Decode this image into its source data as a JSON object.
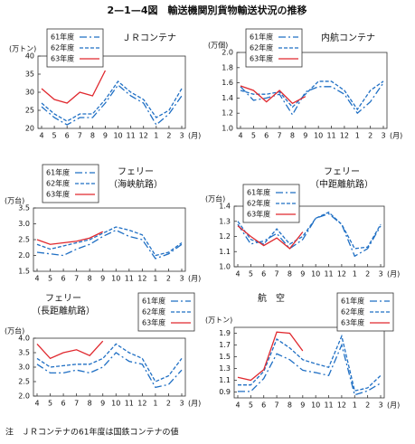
{
  "title": "2—1—4図　輸送機関別貨物輸送状況の推移",
  "note": "注　ＪＲコンテナの61年度は国鉄コンテナの値",
  "chart_data": [
    {
      "type": "line",
      "title": "ＪＲコンテナ",
      "ylabel": "(万トン)",
      "xlabel": "(月)",
      "categories": [
        "4",
        "5",
        "6",
        "7",
        "8",
        "9",
        "10",
        "11",
        "12",
        "1",
        "2",
        "3"
      ],
      "ylim": [
        20,
        40
      ],
      "yticks": [
        20,
        25,
        30,
        35,
        40
      ],
      "legend": "upper left",
      "series": [
        {
          "name": "61年度",
          "color": "#1f6fc4",
          "dash": "dashdot",
          "values": [
            26,
            23,
            21,
            23,
            23,
            27,
            32,
            29,
            27,
            21,
            24,
            29
          ]
        },
        {
          "name": "62年度",
          "color": "#1f6fc4",
          "dash": "dashed",
          "values": [
            27,
            24,
            22,
            24,
            24,
            28,
            33,
            30,
            28,
            23,
            25,
            31
          ]
        },
        {
          "name": "63年度",
          "color": "#e0282e",
          "dash": "solid",
          "values": [
            31,
            28,
            27,
            30,
            29,
            36,
            null,
            null,
            null,
            null,
            null,
            null
          ]
        }
      ]
    },
    {
      "type": "line",
      "title": "内航コンテナ",
      "ylabel": "(万個)",
      "xlabel": "(月)",
      "categories": [
        "4",
        "5",
        "6",
        "7",
        "8",
        "9",
        "10",
        "11",
        "12",
        "1",
        "2",
        "3"
      ],
      "ylim": [
        1,
        2
      ],
      "yticks": [
        {
          "value": 1,
          "label": "1.0"
        },
        1.2,
        1.4,
        1.6,
        1.8,
        {
          "value": 2,
          "label": "2.0"
        }
      ],
      "legend": "upper left",
      "series": [
        {
          "name": "61年度",
          "color": "#1f6fc4",
          "dash": "dashdot",
          "values": [
            1.55,
            1.37,
            1.4,
            1.45,
            1.18,
            1.48,
            1.55,
            1.55,
            1.45,
            1.2,
            1.35,
            1.6
          ]
        },
        {
          "name": "62年度",
          "color": "#1f6fc4",
          "dash": "dashed",
          "values": [
            1.5,
            1.45,
            1.45,
            1.48,
            1.28,
            1.45,
            1.62,
            1.62,
            1.5,
            1.25,
            1.5,
            1.62
          ]
        },
        {
          "name": "63年度",
          "color": "#e0282e",
          "dash": "solid",
          "values": [
            1.56,
            1.5,
            1.35,
            1.5,
            1.33,
            1.42,
            null,
            null,
            null,
            null,
            null,
            null
          ]
        }
      ]
    },
    {
      "type": "line",
      "title": "フェリー",
      "subtitle": "（海峡航路）",
      "ylabel": "(万台)",
      "xlabel": "(月)",
      "categories": [
        "4",
        "5",
        "6",
        "7",
        "8",
        "9",
        "10",
        "11",
        "12",
        "1",
        "2",
        "3"
      ],
      "ylim": [
        1.5,
        3.5
      ],
      "yticks": [
        1.5,
        {
          "value": 2,
          "label": "2.0"
        },
        2.5,
        {
          "value": 3,
          "label": "3.0"
        },
        3.5
      ],
      "legend": "upper left",
      "series": [
        {
          "name": "61年度",
          "color": "#1f6fc4",
          "dash": "dashdot",
          "values": [
            2.1,
            2.05,
            2.0,
            2.2,
            2.35,
            2.6,
            2.8,
            2.6,
            2.5,
            1.9,
            2.05,
            2.35
          ]
        },
        {
          "name": "62年度",
          "color": "#1f6fc4",
          "dash": "dashed",
          "values": [
            2.35,
            2.2,
            2.3,
            2.4,
            2.5,
            2.7,
            2.9,
            2.8,
            2.65,
            2.0,
            2.1,
            2.4
          ]
        },
        {
          "name": "63年度",
          "color": "#e0282e",
          "dash": "solid",
          "values": [
            2.5,
            2.35,
            2.4,
            2.45,
            2.55,
            2.75,
            null,
            null,
            null,
            null,
            null,
            null
          ]
        }
      ]
    },
    {
      "type": "line",
      "title": "フェリー",
      "subtitle": "（中距離航路）",
      "ylabel": "(万台)",
      "xlabel": "(月)",
      "categories": [
        "4",
        "5",
        "6",
        "7",
        "8",
        "9",
        "10",
        "11",
        "12",
        "1",
        "2",
        "3"
      ],
      "ylim": [
        1,
        1.4
      ],
      "yticks": [
        {
          "value": 1,
          "label": "1.0"
        },
        1.1,
        1.2,
        1.3,
        1.4
      ],
      "legend": "upper left",
      "series": [
        {
          "name": "61年度",
          "color": "#1f6fc4",
          "dash": "dashdot",
          "values": [
            1.28,
            1.15,
            1.17,
            1.22,
            1.12,
            1.18,
            1.32,
            1.35,
            1.28,
            1.07,
            1.12,
            1.27
          ]
        },
        {
          "name": "62年度",
          "color": "#1f6fc4",
          "dash": "dashed",
          "values": [
            1.3,
            1.18,
            1.15,
            1.25,
            1.15,
            1.2,
            1.32,
            1.36,
            1.28,
            1.12,
            1.13,
            1.28
          ]
        },
        {
          "name": "63年度",
          "color": "#e0282e",
          "dash": "solid",
          "values": [
            1.27,
            1.2,
            1.14,
            1.19,
            1.12,
            1.23,
            null,
            null,
            null,
            null,
            null,
            null
          ]
        }
      ]
    },
    {
      "type": "line",
      "title": "フェリー",
      "subtitle": "（長距離航路）",
      "ylabel": "(万台)",
      "xlabel": "(月)",
      "categories": [
        "4",
        "5",
        "6",
        "7",
        "8",
        "9",
        "10",
        "11",
        "12",
        "1",
        "2",
        "3"
      ],
      "ylim": [
        2,
        4
      ],
      "yticks": [
        {
          "value": 2,
          "label": "2.0"
        },
        2.5,
        {
          "value": 3,
          "label": "3.0"
        },
        3.5,
        {
          "value": 4,
          "label": "4.0"
        }
      ],
      "legend": "upper right",
      "series": [
        {
          "name": "61年度",
          "color": "#1f6fc4",
          "dash": "dashdot",
          "values": [
            3.1,
            2.8,
            2.8,
            2.9,
            2.8,
            3.0,
            3.5,
            3.2,
            3.1,
            2.3,
            2.4,
            2.9
          ]
        },
        {
          "name": "62年度",
          "color": "#1f6fc4",
          "dash": "dashed",
          "values": [
            3.3,
            3.0,
            3.05,
            3.1,
            3.1,
            3.3,
            3.8,
            3.5,
            3.3,
            2.5,
            2.7,
            3.3
          ]
        },
        {
          "name": "63年度",
          "color": "#e0282e",
          "dash": "solid",
          "values": [
            3.8,
            3.3,
            3.5,
            3.6,
            3.4,
            3.9,
            null,
            null,
            null,
            null,
            null,
            null
          ]
        }
      ]
    },
    {
      "type": "line",
      "title": "航　空",
      "ylabel": "(万トン)",
      "xlabel": "(月)",
      "categories": [
        "4",
        "5",
        "6",
        "7",
        "8",
        "9",
        "10",
        "11",
        "12",
        "1",
        "2",
        "3"
      ],
      "ylim": [
        0.8,
        2
      ],
      "yticks": [
        0.9,
        1.1,
        1.3,
        1.5,
        1.7,
        1.9
      ],
      "legend": "upper right",
      "series": [
        {
          "name": "61年度",
          "color": "#1f6fc4",
          "dash": "dashdot",
          "values": [
            0.91,
            0.91,
            1.13,
            1.55,
            1.45,
            1.27,
            1.23,
            1.18,
            1.7,
            0.85,
            0.92,
            1.05
          ]
        },
        {
          "name": "62年度",
          "color": "#1f6fc4",
          "dash": "dashed",
          "values": [
            1.02,
            1.02,
            1.25,
            1.8,
            1.65,
            1.45,
            1.38,
            1.32,
            1.85,
            0.92,
            0.97,
            1.18
          ]
        },
        {
          "name": "63年度",
          "color": "#e0282e",
          "dash": "solid",
          "values": [
            1.15,
            1.1,
            1.28,
            1.92,
            1.9,
            1.6,
            null,
            null,
            null,
            null,
            null,
            null
          ]
        }
      ]
    }
  ]
}
